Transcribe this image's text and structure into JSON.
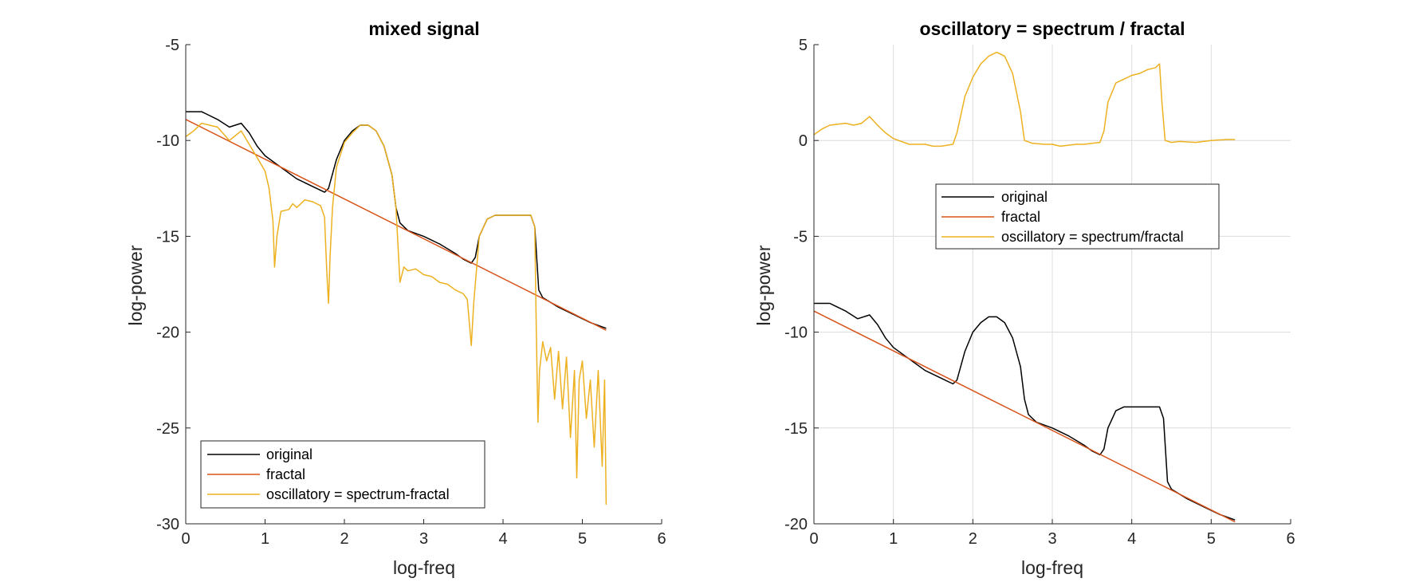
{
  "figure": {
    "background": "#ffffff",
    "colors": {
      "original": "#000000",
      "fractal": "#d95319",
      "oscillatory": "#edb120",
      "axis": "#262626",
      "grid": "#dcdcdc"
    }
  },
  "chart_data": [
    {
      "type": "line",
      "title": "mixed signal",
      "xlabel": "log-freq",
      "ylabel": "log-power",
      "xlim": [
        0,
        6
      ],
      "ylim": [
        -30,
        -5
      ],
      "xticks": [
        0,
        1,
        2,
        3,
        4,
        5,
        6
      ],
      "yticks": [
        -30,
        -25,
        -20,
        -15,
        -10,
        -5
      ],
      "xtick_labels": [
        "0",
        "1",
        "2",
        "3",
        "4",
        "5",
        "6"
      ],
      "ytick_labels": [
        "-30",
        "-25",
        "-20",
        "-15",
        "-10",
        "-5"
      ],
      "grid": false,
      "legend_position": "bottom-left",
      "series": [
        {
          "name": "original",
          "color": "#000000",
          "points": [
            [
              0,
              -8.5
            ],
            [
              0.2,
              -8.5
            ],
            [
              0.25,
              -8.6
            ],
            [
              0.4,
              -8.9
            ],
            [
              0.55,
              -9.3
            ],
            [
              0.7,
              -9.1
            ],
            [
              0.8,
              -9.6
            ],
            [
              0.9,
              -10.3
            ],
            [
              1.0,
              -10.8
            ],
            [
              1.2,
              -11.4
            ],
            [
              1.4,
              -12.0
            ],
            [
              1.6,
              -12.4
            ],
            [
              1.75,
              -12.7
            ],
            [
              1.8,
              -12.5
            ],
            [
              1.9,
              -11.0
            ],
            [
              2.0,
              -10.0
            ],
            [
              2.1,
              -9.5
            ],
            [
              2.2,
              -9.2
            ],
            [
              2.3,
              -9.2
            ],
            [
              2.4,
              -9.5
            ],
            [
              2.5,
              -10.3
            ],
            [
              2.6,
              -11.8
            ],
            [
              2.65,
              -13.5
            ],
            [
              2.7,
              -14.3
            ],
            [
              2.8,
              -14.7
            ],
            [
              3.0,
              -15.0
            ],
            [
              3.2,
              -15.4
            ],
            [
              3.4,
              -15.9
            ],
            [
              3.5,
              -16.2
            ],
            [
              3.6,
              -16.4
            ],
            [
              3.65,
              -16.1
            ],
            [
              3.7,
              -15.0
            ],
            [
              3.8,
              -14.1
            ],
            [
              3.9,
              -13.9
            ],
            [
              4.0,
              -13.9
            ],
            [
              4.2,
              -13.9
            ],
            [
              4.35,
              -13.9
            ],
            [
              4.4,
              -14.5
            ],
            [
              4.45,
              -17.8
            ],
            [
              4.5,
              -18.2
            ],
            [
              4.7,
              -18.7
            ],
            [
              4.9,
              -19.1
            ],
            [
              5.1,
              -19.5
            ],
            [
              5.3,
              -19.8
            ]
          ]
        },
        {
          "name": "fractal",
          "color": "#d95319",
          "points": [
            [
              0,
              -8.9
            ],
            [
              5.3,
              -19.9
            ]
          ]
        },
        {
          "name": "oscillatory = spectrum-fractal",
          "color": "#edb120",
          "points": [
            [
              0,
              -9.8
            ],
            [
              0.1,
              -9.5
            ],
            [
              0.2,
              -9.1
            ],
            [
              0.4,
              -9.3
            ],
            [
              0.55,
              -10.0
            ],
            [
              0.7,
              -9.5
            ],
            [
              0.8,
              -10.2
            ],
            [
              0.9,
              -10.9
            ],
            [
              1.0,
              -11.6
            ],
            [
              1.05,
              -12.5
            ],
            [
              1.1,
              -14.2
            ],
            [
              1.12,
              -16.6
            ],
            [
              1.15,
              -15.0
            ],
            [
              1.2,
              -13.7
            ],
            [
              1.3,
              -13.6
            ],
            [
              1.35,
              -13.3
            ],
            [
              1.4,
              -13.5
            ],
            [
              1.5,
              -13.1
            ],
            [
              1.6,
              -13.2
            ],
            [
              1.7,
              -13.4
            ],
            [
              1.75,
              -14.0
            ],
            [
              1.78,
              -17.0
            ],
            [
              1.8,
              -18.5
            ],
            [
              1.82,
              -16.0
            ],
            [
              1.85,
              -13.5
            ],
            [
              1.9,
              -11.4
            ],
            [
              2.0,
              -10.1
            ],
            [
              2.1,
              -9.6
            ],
            [
              2.2,
              -9.2
            ],
            [
              2.3,
              -9.2
            ],
            [
              2.4,
              -9.5
            ],
            [
              2.5,
              -10.3
            ],
            [
              2.6,
              -11.8
            ],
            [
              2.65,
              -13.5
            ],
            [
              2.7,
              -17.4
            ],
            [
              2.75,
              -16.6
            ],
            [
              2.8,
              -16.8
            ],
            [
              2.9,
              -16.7
            ],
            [
              3.0,
              -17.0
            ],
            [
              3.1,
              -17.1
            ],
            [
              3.2,
              -17.4
            ],
            [
              3.3,
              -17.5
            ],
            [
              3.4,
              -17.8
            ],
            [
              3.5,
              -18.0
            ],
            [
              3.55,
              -18.3
            ],
            [
              3.6,
              -20.7
            ],
            [
              3.63,
              -18.5
            ],
            [
              3.7,
              -15.0
            ],
            [
              3.8,
              -14.1
            ],
            [
              3.9,
              -13.9
            ],
            [
              4.0,
              -13.9
            ],
            [
              4.2,
              -13.9
            ],
            [
              4.35,
              -13.9
            ],
            [
              4.4,
              -14.5
            ],
            [
              4.42,
              -20.1
            ],
            [
              4.44,
              -24.7
            ],
            [
              4.46,
              -22.0
            ],
            [
              4.5,
              -20.5
            ],
            [
              4.55,
              -21.5
            ],
            [
              4.6,
              -20.8
            ],
            [
              4.65,
              -23.5
            ],
            [
              4.7,
              -21.0
            ],
            [
              4.75,
              -24.0
            ],
            [
              4.8,
              -21.3
            ],
            [
              4.85,
              -25.5
            ],
            [
              4.9,
              -22.0
            ],
            [
              4.93,
              -27.6
            ],
            [
              4.96,
              -22.5
            ],
            [
              5.0,
              -21.5
            ],
            [
              5.05,
              -24.5
            ],
            [
              5.1,
              -22.5
            ],
            [
              5.15,
              -26.0
            ],
            [
              5.2,
              -22.0
            ],
            [
              5.25,
              -27.0
            ],
            [
              5.28,
              -22.5
            ],
            [
              5.3,
              -29.0
            ]
          ]
        }
      ]
    },
    {
      "type": "line",
      "title": "oscillatory = spectrum / fractal",
      "xlabel": "log-freq",
      "ylabel": "log-power",
      "xlim": [
        0,
        6
      ],
      "ylim": [
        -20,
        5
      ],
      "xticks": [
        0,
        1,
        2,
        3,
        4,
        5,
        6
      ],
      "yticks": [
        -20,
        -15,
        -10,
        -5,
        0,
        5
      ],
      "xtick_labels": [
        "0",
        "1",
        "2",
        "3",
        "4",
        "5",
        "6"
      ],
      "ytick_labels": [
        "-20",
        "-15",
        "-10",
        "-5",
        "0",
        "5"
      ],
      "grid": true,
      "legend_position": "center",
      "series": [
        {
          "name": "original",
          "color": "#000000",
          "points": [
            [
              0,
              -8.5
            ],
            [
              0.2,
              -8.5
            ],
            [
              0.25,
              -8.6
            ],
            [
              0.4,
              -8.9
            ],
            [
              0.55,
              -9.3
            ],
            [
              0.7,
              -9.1
            ],
            [
              0.8,
              -9.6
            ],
            [
              0.9,
              -10.3
            ],
            [
              1.0,
              -10.8
            ],
            [
              1.2,
              -11.4
            ],
            [
              1.4,
              -12.0
            ],
            [
              1.6,
              -12.4
            ],
            [
              1.75,
              -12.7
            ],
            [
              1.8,
              -12.5
            ],
            [
              1.9,
              -11.0
            ],
            [
              2.0,
              -10.0
            ],
            [
              2.1,
              -9.5
            ],
            [
              2.2,
              -9.2
            ],
            [
              2.3,
              -9.2
            ],
            [
              2.4,
              -9.5
            ],
            [
              2.5,
              -10.3
            ],
            [
              2.6,
              -11.8
            ],
            [
              2.65,
              -13.5
            ],
            [
              2.7,
              -14.3
            ],
            [
              2.8,
              -14.7
            ],
            [
              3.0,
              -15.0
            ],
            [
              3.2,
              -15.4
            ],
            [
              3.4,
              -15.9
            ],
            [
              3.5,
              -16.2
            ],
            [
              3.6,
              -16.4
            ],
            [
              3.65,
              -16.1
            ],
            [
              3.7,
              -15.0
            ],
            [
              3.8,
              -14.1
            ],
            [
              3.9,
              -13.9
            ],
            [
              4.0,
              -13.9
            ],
            [
              4.2,
              -13.9
            ],
            [
              4.35,
              -13.9
            ],
            [
              4.4,
              -14.5
            ],
            [
              4.45,
              -17.8
            ],
            [
              4.5,
              -18.2
            ],
            [
              4.7,
              -18.7
            ],
            [
              4.9,
              -19.1
            ],
            [
              5.1,
              -19.5
            ],
            [
              5.3,
              -19.8
            ]
          ]
        },
        {
          "name": "fractal",
          "color": "#d95319",
          "points": [
            [
              0,
              -8.9
            ],
            [
              5.3,
              -19.9
            ]
          ]
        },
        {
          "name": "oscillatory = spectrum/fractal",
          "color": "#edb120",
          "points": [
            [
              0,
              0.3
            ],
            [
              0.1,
              0.6
            ],
            [
              0.2,
              0.8
            ],
            [
              0.3,
              0.85
            ],
            [
              0.4,
              0.9
            ],
            [
              0.5,
              0.8
            ],
            [
              0.6,
              0.9
            ],
            [
              0.7,
              1.25
            ],
            [
              0.8,
              0.8
            ],
            [
              0.9,
              0.4
            ],
            [
              1.0,
              0.1
            ],
            [
              1.2,
              -0.2
            ],
            [
              1.4,
              -0.2
            ],
            [
              1.5,
              -0.3
            ],
            [
              1.6,
              -0.3
            ],
            [
              1.75,
              -0.2
            ],
            [
              1.8,
              0.4
            ],
            [
              1.9,
              2.3
            ],
            [
              2.0,
              3.3
            ],
            [
              2.1,
              4.0
            ],
            [
              2.2,
              4.4
            ],
            [
              2.3,
              4.6
            ],
            [
              2.4,
              4.4
            ],
            [
              2.5,
              3.5
            ],
            [
              2.6,
              1.5
            ],
            [
              2.65,
              0.0
            ],
            [
              2.75,
              -0.15
            ],
            [
              2.9,
              -0.2
            ],
            [
              3.0,
              -0.2
            ],
            [
              3.1,
              -0.3
            ],
            [
              3.3,
              -0.2
            ],
            [
              3.4,
              -0.2
            ],
            [
              3.5,
              -0.15
            ],
            [
              3.6,
              -0.1
            ],
            [
              3.65,
              0.5
            ],
            [
              3.7,
              2.0
            ],
            [
              3.8,
              3.0
            ],
            [
              3.9,
              3.2
            ],
            [
              4.0,
              3.4
            ],
            [
              4.1,
              3.5
            ],
            [
              4.2,
              3.7
            ],
            [
              4.3,
              3.8
            ],
            [
              4.35,
              4.0
            ],
            [
              4.38,
              2.0
            ],
            [
              4.42,
              0.0
            ],
            [
              4.5,
              -0.1
            ],
            [
              4.6,
              -0.05
            ],
            [
              4.8,
              -0.1
            ],
            [
              5.0,
              0.0
            ],
            [
              5.2,
              0.05
            ],
            [
              5.3,
              0.05
            ]
          ]
        }
      ]
    }
  ]
}
